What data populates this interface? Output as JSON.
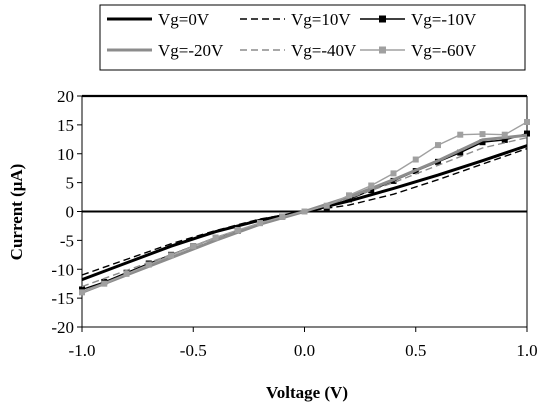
{
  "chart_data": {
    "type": "line",
    "title": "",
    "xlabel": "Voltage (V)",
    "ylabel": "Current (μA)",
    "xlim": [
      -1.0,
      1.0
    ],
    "ylim": [
      -20,
      20
    ],
    "xticks": [
      "-1.0",
      "-0.5",
      "0.0",
      "0.5",
      "1.0"
    ],
    "yticks": [
      "20",
      "15",
      "10",
      "5",
      "0",
      "-5",
      "-10",
      "-15",
      "-20"
    ],
    "grid": false,
    "legend_position": "top",
    "series": [
      {
        "name": "Vg=0V",
        "color": "#000000",
        "style": "solid-thick",
        "marker": "none",
        "x": [
          -1.0,
          -0.8,
          -0.6,
          -0.4,
          -0.2,
          0.0,
          0.2,
          0.4,
          0.6,
          0.8,
          1.0
        ],
        "y": [
          -11.8,
          -8.9,
          -6.0,
          -3.5,
          -1.5,
          0.0,
          1.8,
          4.0,
          6.3,
          8.8,
          11.4
        ]
      },
      {
        "name": "Vg=10V",
        "color": "#000000",
        "style": "dashed",
        "marker": "none",
        "x": [
          -1.0,
          -0.8,
          -0.6,
          -0.4,
          -0.2,
          0.0,
          0.2,
          0.4,
          0.6,
          0.8,
          1.0
        ],
        "y": [
          -11.0,
          -8.3,
          -5.6,
          -3.3,
          -1.3,
          0.0,
          1.1,
          3.0,
          5.5,
          8.2,
          10.9
        ]
      },
      {
        "name": "Vg=-10V",
        "color": "#000000",
        "style": "solid",
        "marker": "square",
        "x": [
          -1.0,
          -0.9,
          -0.8,
          -0.7,
          -0.6,
          -0.5,
          -0.4,
          -0.3,
          -0.2,
          -0.1,
          0.0,
          0.1,
          0.2,
          0.3,
          0.4,
          0.5,
          0.6,
          0.7,
          0.8,
          0.9,
          1.0
        ],
        "y": [
          -13.5,
          -12.2,
          -10.6,
          -9.0,
          -7.5,
          -6.0,
          -4.5,
          -3.3,
          -2.0,
          -0.9,
          0.0,
          0.7,
          2.1,
          3.7,
          5.3,
          7.0,
          8.6,
          10.2,
          12.0,
          12.4,
          13.5
        ]
      },
      {
        "name": "Vg=-20V",
        "color": "#8c8c8c",
        "style": "solid-thick",
        "marker": "none",
        "x": [
          -1.0,
          -0.8,
          -0.6,
          -0.4,
          -0.2,
          0.0,
          0.2,
          0.4,
          0.6,
          0.8,
          1.0
        ],
        "y": [
          -14.0,
          -11.0,
          -8.0,
          -5.0,
          -2.2,
          0.0,
          2.5,
          5.5,
          8.8,
          12.4,
          13.2
        ]
      },
      {
        "name": "Vg=-40V",
        "color": "#8c8c8c",
        "style": "dashed",
        "marker": "none",
        "x": [
          -1.0,
          -0.8,
          -0.6,
          -0.4,
          -0.2,
          0.0,
          0.2,
          0.4,
          0.6,
          0.8,
          1.0
        ],
        "y": [
          -13.0,
          -10.2,
          -7.5,
          -4.6,
          -2.0,
          0.0,
          2.3,
          5.0,
          8.0,
          11.0,
          12.8
        ]
      },
      {
        "name": "Vg=-60V",
        "color": "#a0a0a0",
        "style": "solid",
        "marker": "square",
        "x": [
          -1.0,
          -0.9,
          -0.8,
          -0.7,
          -0.6,
          -0.5,
          -0.4,
          -0.3,
          -0.2,
          -0.1,
          0.0,
          0.1,
          0.2,
          0.3,
          0.4,
          0.5,
          0.6,
          0.7,
          0.8,
          0.9,
          1.0
        ],
        "y": [
          -14.0,
          -12.5,
          -10.8,
          -9.2,
          -7.6,
          -6.0,
          -4.5,
          -3.2,
          -2.0,
          -0.9,
          0.0,
          1.0,
          2.8,
          4.5,
          6.6,
          9.0,
          11.5,
          13.3,
          13.4,
          13.3,
          15.5
        ]
      }
    ]
  }
}
